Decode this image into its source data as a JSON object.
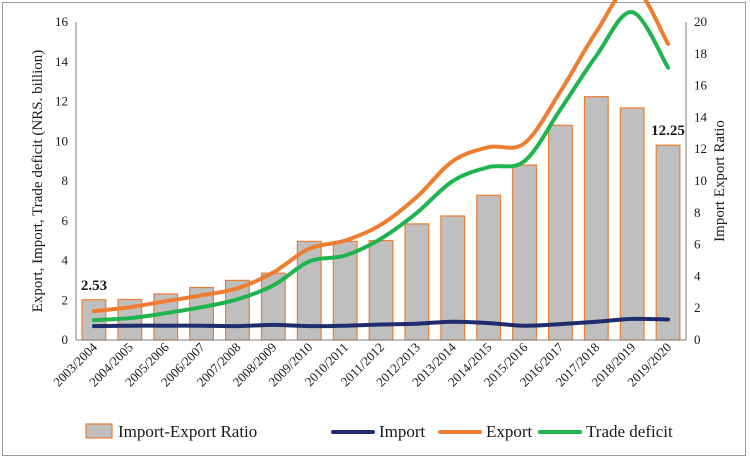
{
  "chart_data": {
    "type": "bar",
    "categories": [
      "2003/2004",
      "2004/2005",
      "2005/2006",
      "2006/2007",
      "2007/2008",
      "2008/2009",
      "2009/2010",
      "2010/2011",
      "2011/2012",
      "2012/2013",
      "2013/2014",
      "2014/2015",
      "2015/2016",
      "2016/2017",
      "2017/2018",
      "2018/2019",
      "2019/2020"
    ],
    "ylabel": "Export, Import, Trade deficit (NRS. billion)",
    "y2label": "Import Export Ratio",
    "ylim": [
      0,
      16
    ],
    "y2lim": [
      0,
      20
    ],
    "yticks": [
      "0",
      "2",
      "4",
      "6",
      "8",
      "10",
      "12",
      "14",
      "16"
    ],
    "y2ticks": [
      "0",
      "2",
      "4",
      "6",
      "8",
      "10",
      "12",
      "14",
      "16",
      "18",
      "20"
    ],
    "series": [
      {
        "name": "Import-Export Ratio",
        "type": "bar",
        "axis": "right",
        "color": "#bfbfbf",
        "edge_color": "#ed7d31",
        "values": [
          2.53,
          2.55,
          2.9,
          3.3,
          3.75,
          4.2,
          6.2,
          6.2,
          6.25,
          7.3,
          7.8,
          9.1,
          11.0,
          13.5,
          15.3,
          14.6,
          12.25
        ]
      },
      {
        "name": "Import",
        "type": "line",
        "axis": "left",
        "color": "#1f2d6e",
        "values": [
          0.7,
          0.72,
          0.72,
          0.72,
          0.7,
          0.76,
          0.7,
          0.72,
          0.78,
          0.82,
          0.92,
          0.85,
          0.72,
          0.8,
          0.92,
          1.06,
          1.03
        ]
      },
      {
        "name": "Export",
        "type": "line",
        "axis": "left",
        "color": "#ed7d31",
        "values": [
          1.45,
          1.65,
          1.95,
          2.25,
          2.6,
          3.4,
          4.6,
          5.0,
          5.8,
          7.2,
          9.0,
          9.7,
          9.9,
          12.5,
          15.5,
          17.8,
          14.9
        ]
      },
      {
        "name": "Trade deficit",
        "type": "line",
        "axis": "left",
        "color": "#1fb44e",
        "values": [
          1.0,
          1.1,
          1.35,
          1.65,
          2.05,
          2.75,
          3.95,
          4.25,
          5.1,
          6.4,
          8.0,
          8.7,
          9.0,
          11.6,
          14.3,
          16.5,
          13.7
        ]
      }
    ],
    "annotations": [
      {
        "text": "2.53",
        "category": "2003/2004"
      },
      {
        "text": "12.25",
        "category": "2019/2020"
      }
    ],
    "legend": {
      "position": "bottom",
      "items": [
        "Import-Export Ratio",
        "Import",
        "Export",
        "Trade deficit"
      ]
    }
  }
}
